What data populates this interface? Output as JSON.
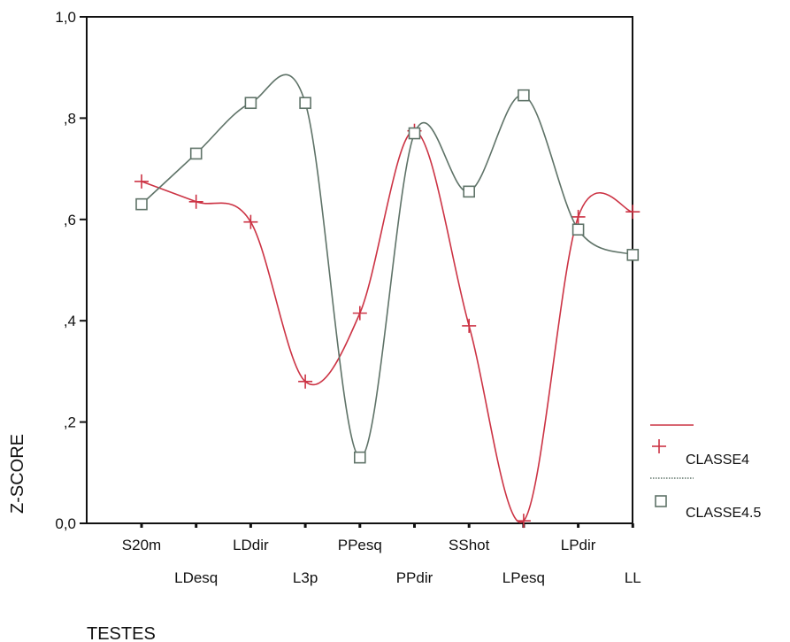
{
  "chart_data": {
    "type": "line",
    "title": "",
    "xlabel": "TESTES",
    "ylabel": "Z-SCORE",
    "categories": [
      "S20m",
      "LDesq",
      "LDdir",
      "L3p",
      "PPesq",
      "PPdir",
      "SShot",
      "LPesq",
      "LPdir",
      "LL"
    ],
    "ytick_labels": [
      "0,0",
      ",2",
      ",4",
      ",6",
      ",8",
      "1,0"
    ],
    "ylim": [
      0,
      1.0
    ],
    "grid": false,
    "legend_position": "right",
    "series": [
      {
        "name": "CLASSE4",
        "marker": "plus",
        "color": "#cc3344",
        "values": [
          0.675,
          0.635,
          0.595,
          0.28,
          0.415,
          0.775,
          0.39,
          0.005,
          0.605,
          0.615
        ]
      },
      {
        "name": "CLASSE4.5",
        "marker": "square",
        "color": "#5f7368",
        "values": [
          0.63,
          0.73,
          0.83,
          0.83,
          0.13,
          0.77,
          0.655,
          0.845,
          0.58,
          0.53
        ]
      }
    ]
  }
}
